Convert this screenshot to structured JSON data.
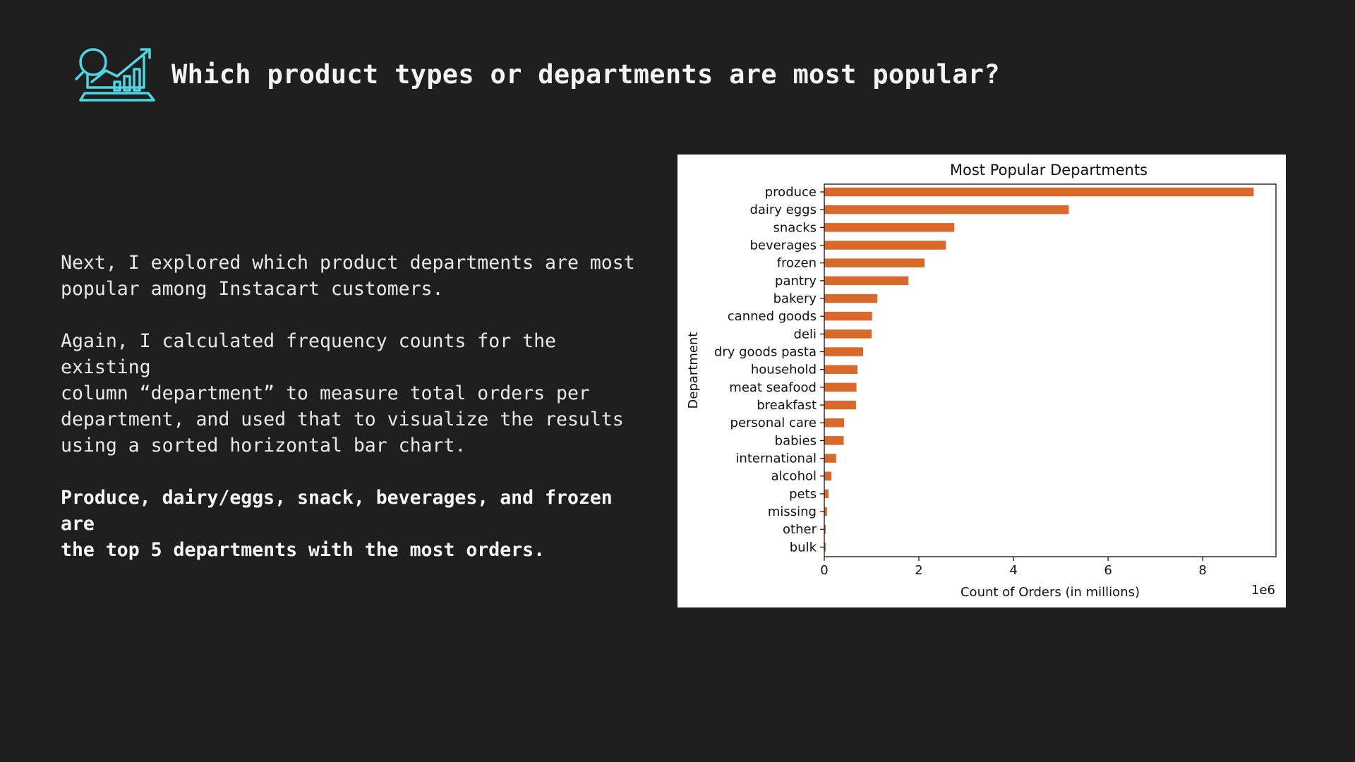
{
  "header": {
    "title": "Which product types or departments are most popular?",
    "icon": "analytics-chart-icon",
    "icon_color": "#4fd6e0"
  },
  "main": {
    "paragraphs": [
      "Next, I explored which product departments are most\npopular among Instacart customers.",
      "Again, I calculated frequency counts for the existing\ncolumn “department” to measure total orders per\ndepartment, and used that to visualize the results\nusing a sorted horizontal bar chart.",
      "Produce, dairy/eggs, snack, beverages, and frozen are\nthe top 5 departments with the most orders."
    ]
  },
  "colors": {
    "background": "#1f1f1f",
    "bar": "#d9692a",
    "text": "#e8e8e8"
  },
  "chart_data": {
    "type": "bar",
    "orientation": "horizontal",
    "title": "Most Popular Departments",
    "xlabel": "Count of Orders (in millions)",
    "ylabel": "Department",
    "x_offset_label": "1e6",
    "categories": [
      "produce",
      "dairy eggs",
      "snacks",
      "beverages",
      "frozen",
      "pantry",
      "bakery",
      "canned goods",
      "deli",
      "dry goods pasta",
      "household",
      "meat seafood",
      "breakfast",
      "personal care",
      "babies",
      "international",
      "alcohol",
      "pets",
      "missing",
      "other",
      "bulk"
    ],
    "values": [
      9080000,
      5170000,
      2750000,
      2570000,
      2120000,
      1780000,
      1120000,
      1010000,
      1000000,
      820000,
      700000,
      680000,
      670000,
      420000,
      410000,
      250000,
      150000,
      90000,
      60000,
      30000,
      30000
    ],
    "xlim": [
      0,
      9550000
    ],
    "xticks": [
      0,
      2,
      4,
      6,
      8
    ],
    "grid": false,
    "bar_color": "#d9692a"
  }
}
